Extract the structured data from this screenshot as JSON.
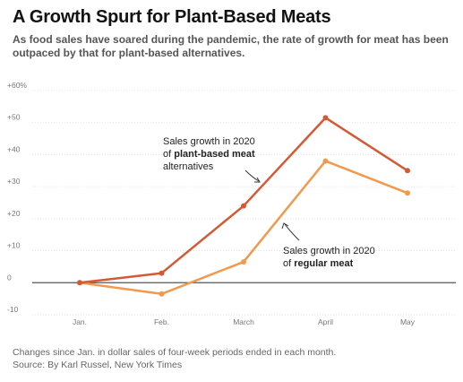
{
  "header": {
    "title": "A Growth Spurt for Plant-Based Meats",
    "subtitle": "As food sales have soared during the pandemic, the rate of growth for meat has been outpaced by that for plant-based alternatives."
  },
  "footer": {
    "note": "Changes since Jan. in dollar sales of four-week periods ended in each month.",
    "source": "Source: By Karl Russel, New York Times"
  },
  "annotations": {
    "plant": {
      "line1": "Sales growth in 2020",
      "line2_prefix": "of ",
      "line2_bold": "plant-based meat",
      "line3": "alternatives"
    },
    "meat": {
      "line1": "Sales growth in 2020",
      "line2_prefix": "of ",
      "line2_bold": "regular meat"
    }
  },
  "colors": {
    "plant": "#d45a35",
    "meat": "#f19a4e",
    "grid": "#dddddd",
    "zero": "#555555"
  },
  "chart_data": {
    "type": "line",
    "categories": [
      "Jan.",
      "Feb.",
      "March",
      "April",
      "May"
    ],
    "y_tick_labels": [
      "+60%",
      "+50",
      "+40",
      "+30",
      "+20",
      "+10",
      "0",
      "-10"
    ],
    "y_ticks": [
      60,
      50,
      40,
      30,
      20,
      10,
      0,
      -10
    ],
    "ylim": [
      -10,
      60
    ],
    "series": [
      {
        "name": "Sales growth in 2020 of plant-based meat alternatives",
        "values": [
          0,
          3,
          24,
          51.5,
          35
        ]
      },
      {
        "name": "Sales growth in 2020 of regular meat",
        "values": [
          0,
          -3.5,
          6.5,
          38,
          28
        ]
      }
    ],
    "grid": true
  }
}
